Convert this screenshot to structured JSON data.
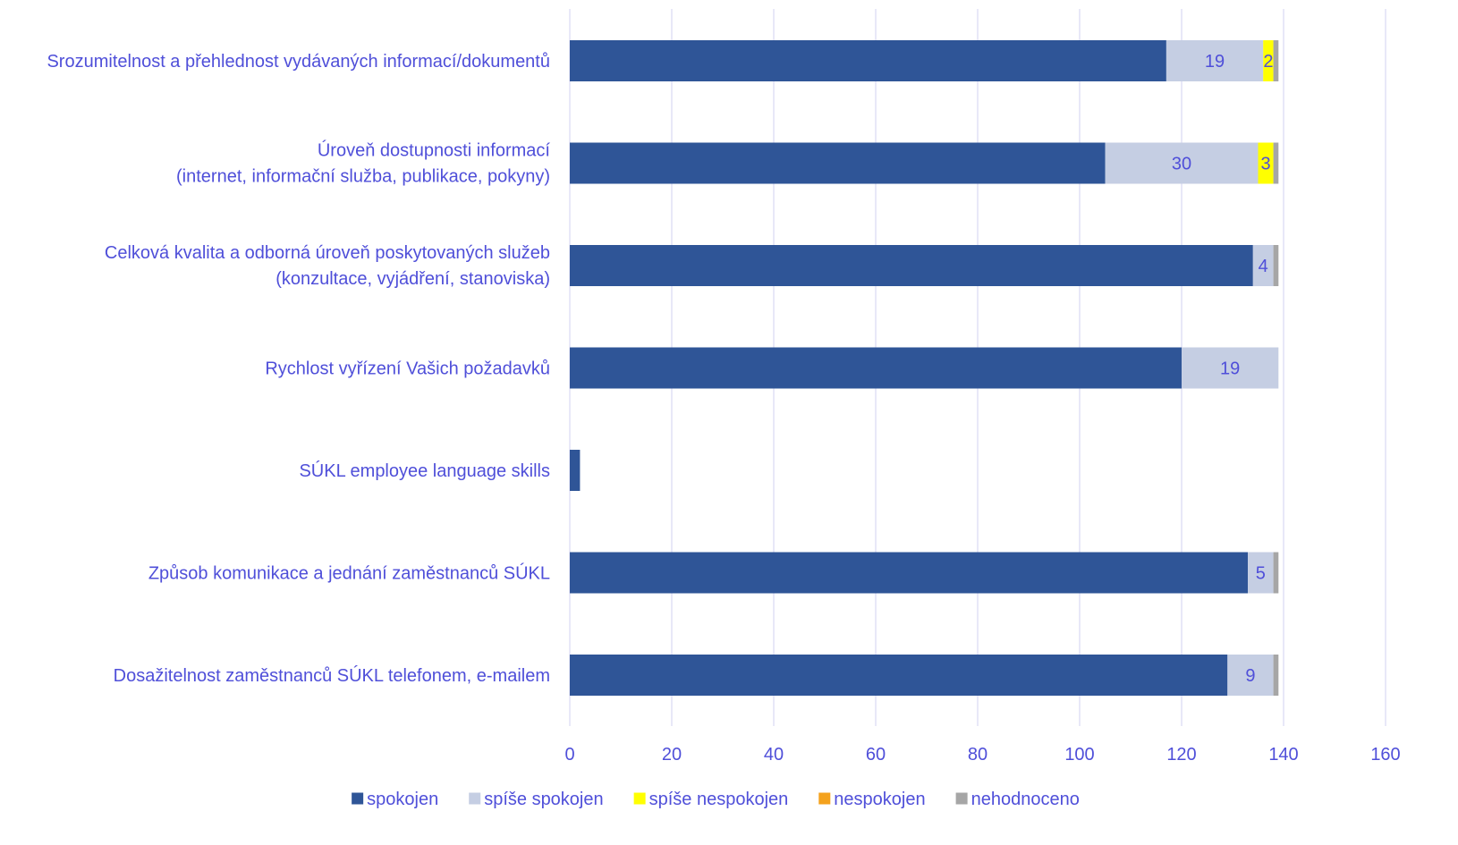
{
  "colors": {
    "text": "#4F4FD9",
    "grid": "#D9D9F2",
    "spokojen": "#2F5597",
    "spise_spokojen": "#C5CEE3",
    "spise_nespokojen": "#FFFF00",
    "nespokojen": "#F4A21D",
    "nehodnoceno": "#A6A6A6"
  },
  "chart_data": {
    "type": "bar",
    "orientation": "horizontal",
    "stacked": true,
    "title": "",
    "xlabel": "",
    "ylabel": "",
    "xlim": [
      0,
      160
    ],
    "x_ticks": [
      "0",
      "20",
      "40",
      "60",
      "80",
      "100",
      "120",
      "140",
      "160"
    ],
    "grid": true,
    "legend_position": "bottom",
    "categories": [
      [
        "Srozumitelnost a přehlednost vydávaných informací/dokumentů"
      ],
      [
        "Úroveň dostupnosti informací",
        "(internet, informační služba, publikace, pokyny)"
      ],
      [
        "Celková kvalita a odborná úroveň poskytovaných služeb",
        "(konzultace, vyjádření, stanoviska)"
      ],
      [
        "Rychlost vyřízení Vašich požadavků"
      ],
      [
        "SÚKL employee language skills"
      ],
      [
        "Způsob komunikace a jednání zaměstnanců SÚKL "
      ],
      [
        "Dosažitelnost zaměstnanců SÚKL telefonem, e-mailem"
      ]
    ],
    "series": [
      {
        "name": "spokojen",
        "color_key": "spokojen",
        "values": [
          117,
          105,
          134,
          120,
          2,
          133,
          129
        ],
        "labels": [
          "",
          "",
          "",
          "",
          "",
          "",
          ""
        ]
      },
      {
        "name": "spíše spokojen",
        "color_key": "spise_spokojen",
        "values": [
          19,
          30,
          4,
          19,
          0,
          5,
          9
        ],
        "labels": [
          "19",
          "30",
          "4",
          "19",
          "",
          "5",
          "9"
        ]
      },
      {
        "name": "spíše nespokojen",
        "color_key": "spise_nespokojen",
        "values": [
          2,
          3,
          0,
          0,
          0,
          0,
          0
        ],
        "labels": [
          "2",
          "3",
          "",
          "",
          "",
          "",
          ""
        ]
      },
      {
        "name": "nespokojen",
        "color_key": "nespokojen",
        "values": [
          0,
          0,
          0,
          0,
          0,
          0,
          0
        ],
        "labels": [
          "",
          "",
          "",
          "",
          "",
          "",
          ""
        ]
      },
      {
        "name": "nehodnoceno",
        "color_key": "nehodnoceno",
        "values": [
          1,
          1,
          1,
          0,
          0,
          1,
          1
        ],
        "labels": [
          "",
          "",
          "",
          "",
          "",
          "",
          ""
        ]
      }
    ]
  }
}
